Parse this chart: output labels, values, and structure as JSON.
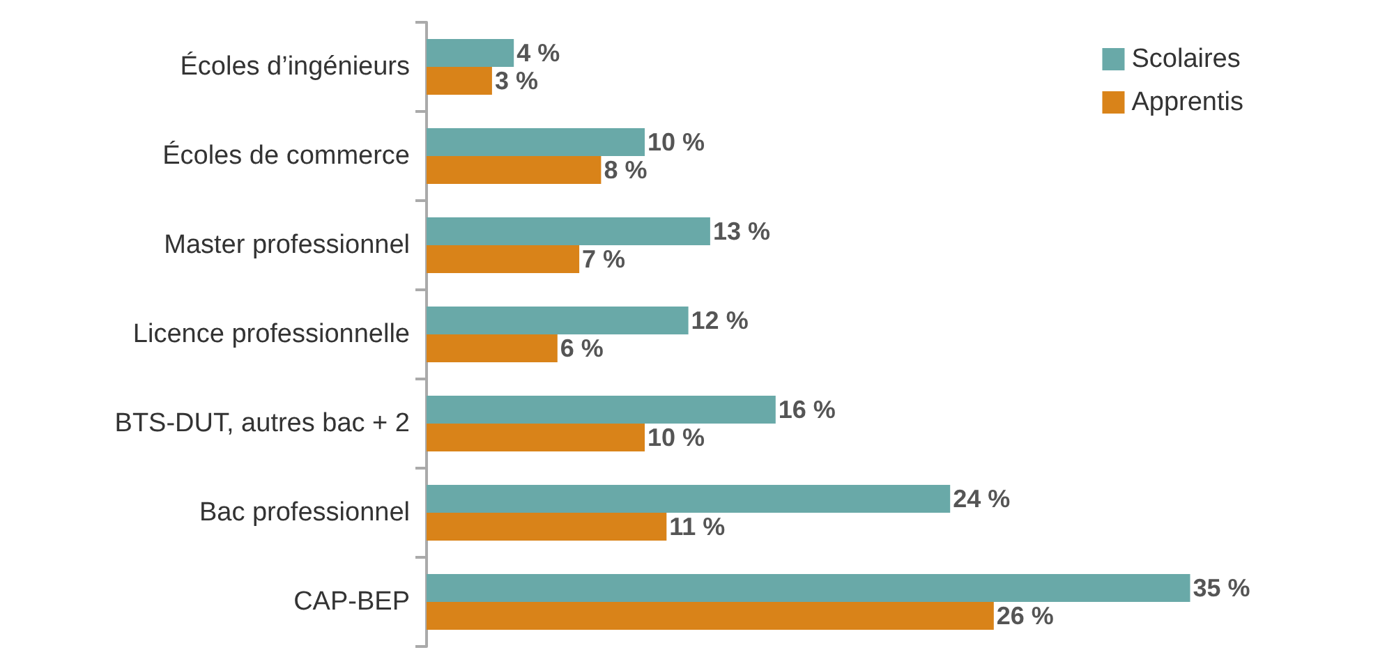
{
  "chart_data": {
    "type": "bar",
    "orientation": "horizontal",
    "categories": [
      "Écoles d’ingénieurs",
      "Écoles de commerce",
      "Master professionnel",
      "Licence professionnelle",
      "BTS-DUT, autres bac + 2",
      "Bac professionnel",
      "CAP-BEP"
    ],
    "series": [
      {
        "name": "Scolaires",
        "color": "#69a9a8",
        "values": [
          4,
          10,
          13,
          12,
          16,
          24,
          35
        ],
        "value_labels": [
          "4 %",
          "10 %",
          "13 %",
          "12 %",
          "16 %",
          "24 %",
          "35 %"
        ]
      },
      {
        "name": "Apprentis",
        "color": "#d98319",
        "values": [
          3,
          8,
          7,
          6,
          10,
          11,
          26
        ],
        "value_labels": [
          "3 %",
          "8 %",
          "7 %",
          "6 %",
          "10 %",
          "11 %",
          "26 %"
        ]
      }
    ],
    "legend": "top right"
  }
}
